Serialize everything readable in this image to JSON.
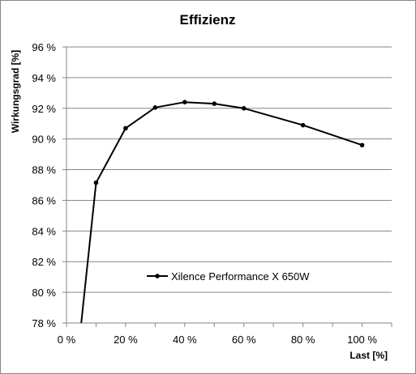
{
  "chart_data": {
    "type": "line",
    "title": "Effizienz",
    "xlabel": "Last [%]",
    "ylabel": "Wirkungsgrad [%]",
    "xlim": [
      0,
      110
    ],
    "ylim": [
      78,
      96
    ],
    "x_ticks": [
      0,
      20,
      40,
      60,
      80,
      100
    ],
    "x_tick_labels": [
      "0 %",
      "20 %",
      "40 %",
      "60 %",
      "80 %",
      "100 %"
    ],
    "y_ticks": [
      78,
      80,
      82,
      84,
      86,
      88,
      90,
      92,
      94,
      96
    ],
    "y_tick_labels": [
      "78 %",
      "80 %",
      "82 %",
      "84 %",
      "86 %",
      "88 %",
      "90 %",
      "92 %",
      "94 %",
      "96 %"
    ],
    "grid": "horizontal",
    "legend_position": "inside, lower center",
    "series": [
      {
        "name": "Xilence Performance X 650W",
        "color": "#000000",
        "marker": "circle",
        "x": [
          5,
          10,
          20,
          30,
          40,
          50,
          60,
          80,
          100
        ],
        "y": [
          78.0,
          87.15,
          90.7,
          92.05,
          92.4,
          92.3,
          92.0,
          90.9,
          89.6
        ],
        "marker_visible": [
          false,
          true,
          true,
          true,
          true,
          true,
          true,
          true,
          true
        ]
      }
    ]
  }
}
